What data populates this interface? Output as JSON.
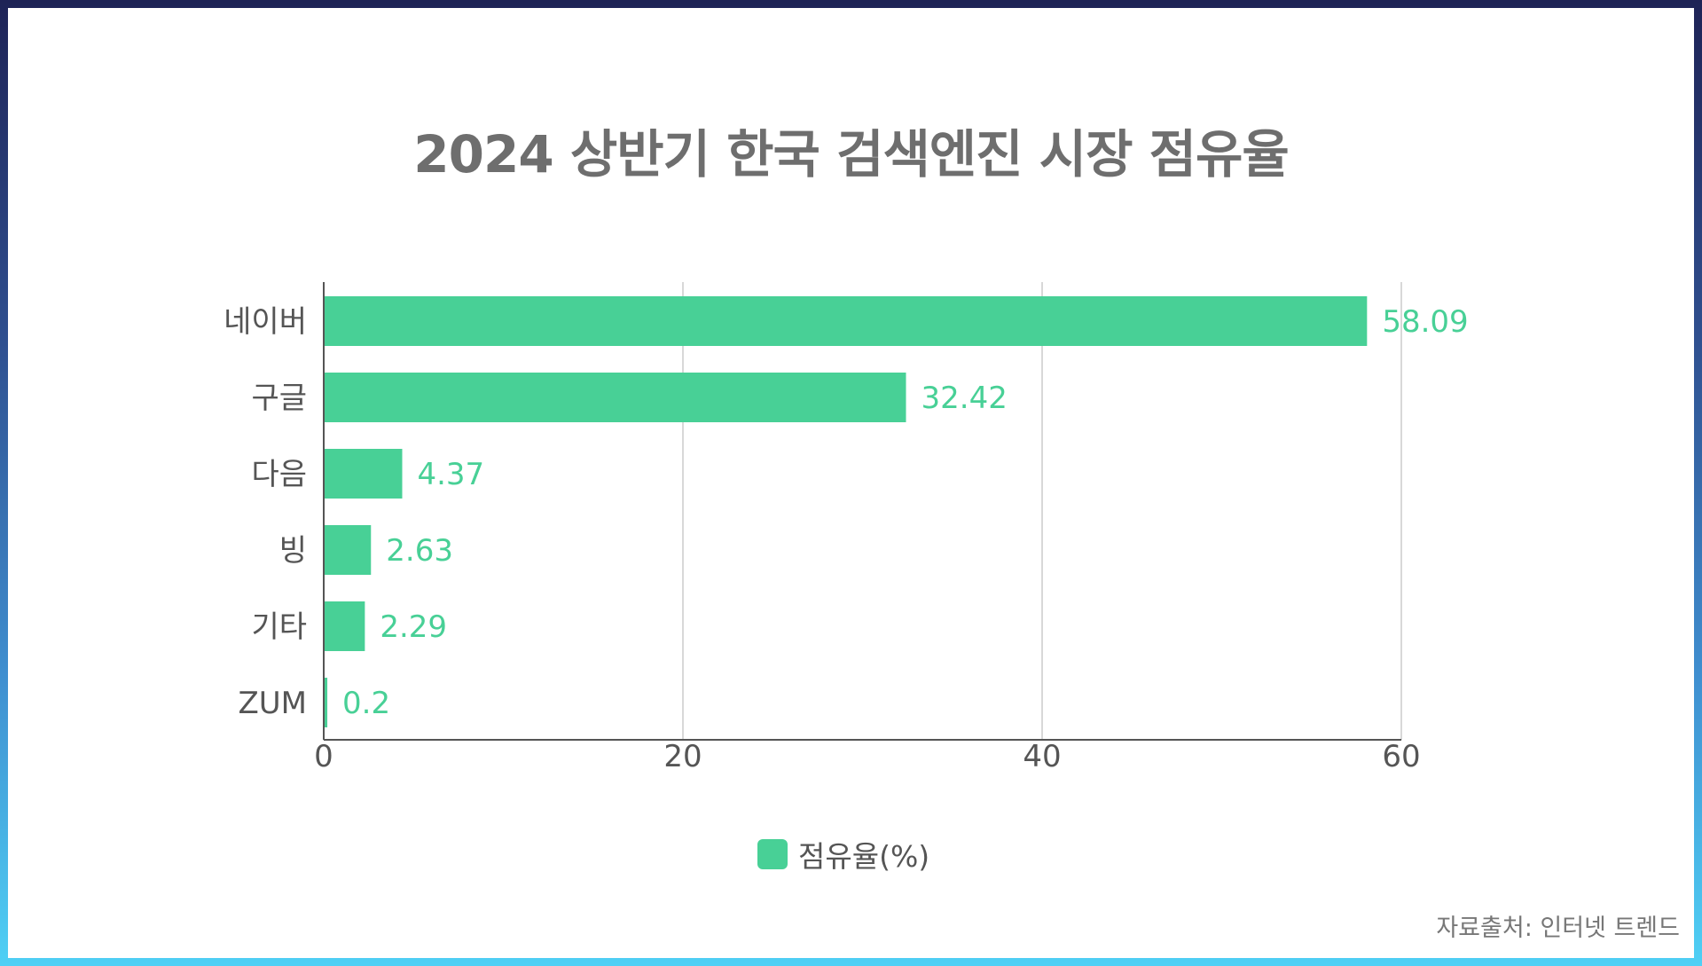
{
  "title": "2024 상반기 한국 검색엔진 시장 점유율",
  "source": "자료출처: 인터넷 트렌드",
  "colors": {
    "bar": "#48d096",
    "axis_text": "#555555",
    "label_text": "#48d096",
    "grid": "#cccccc",
    "axis_line": "#555555"
  },
  "chart_data": {
    "type": "bar",
    "orientation": "horizontal",
    "categories": [
      "네이버",
      "구글",
      "다음",
      "빙",
      "기타",
      "ZUM"
    ],
    "series": [
      {
        "name": "점유율(%)",
        "values": [
          58.09,
          32.42,
          4.37,
          2.63,
          2.29,
          0.2
        ]
      }
    ],
    "value_labels": [
      "58.09",
      "32.42",
      "4.37",
      "2.63",
      "2.29",
      "0.2"
    ],
    "xlim": [
      0,
      60
    ],
    "xticks": [
      0,
      20,
      40,
      60
    ],
    "xtick_labels": [
      "0",
      "20",
      "40",
      "60"
    ],
    "grid": "vertical",
    "legend": "bottom-center",
    "title": "2024 상반기 한국 검색엔진 시장 점유율"
  }
}
